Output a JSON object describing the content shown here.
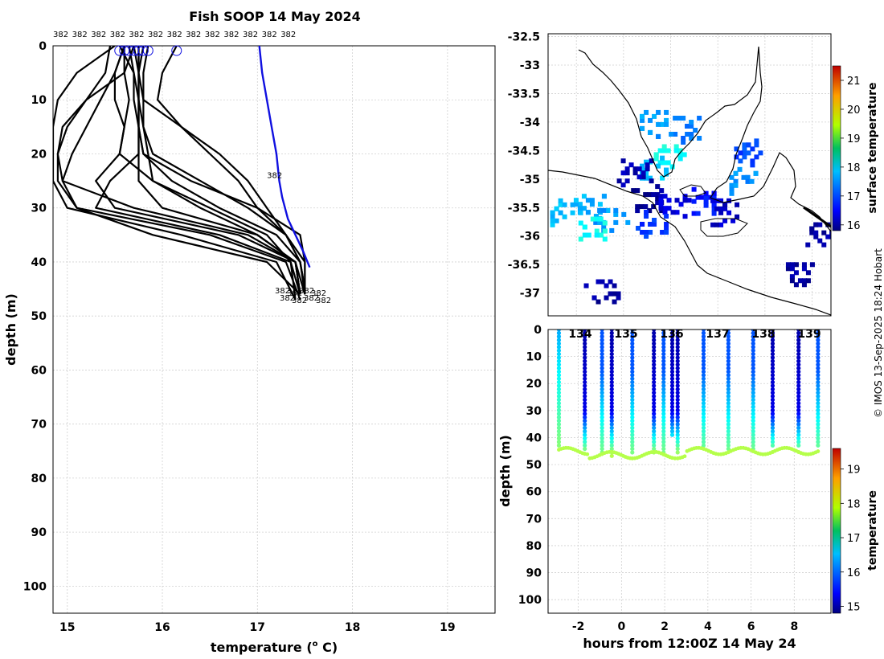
{
  "title": "Fish SOOP 14 May 2024",
  "credit": "© IMOS 13-Sep-2025 18:24 Hobart",
  "chart_data": [
    {
      "type": "line",
      "name": "temperature-depth profiles",
      "xlabel": "temperature (",
      "xlabel_sup": "o",
      "xlabel_tail": " C)",
      "ylabel": "depth (m)",
      "xlim": [
        14.85,
        19.5
      ],
      "ylim": [
        105,
        0
      ],
      "xticks": [
        15,
        16,
        17,
        18,
        19
      ],
      "yticks": [
        0,
        10,
        20,
        30,
        40,
        50,
        60,
        70,
        80,
        90,
        100
      ],
      "grid": true,
      "top_label": "382",
      "top_label_count": 13,
      "mid_label": "382",
      "mid_label_depth": 24.5,
      "mid_label_temp": 17.1,
      "bottom_labels": [
        "382",
        "382",
        "382",
        "382",
        "382",
        "382",
        "382",
        "382"
      ],
      "series": [
        {
          "name": "cast-1",
          "temps": [
            15.55,
            15.7,
            15.75,
            15.75,
            15.8,
            16.3,
            17.0,
            17.45,
            17.5,
            17.5
          ],
          "depths": [
            0,
            5,
            10,
            15,
            20,
            25,
            30,
            35,
            40,
            46
          ]
        },
        {
          "name": "cast-2",
          "temps": [
            15.6,
            15.6,
            15.65,
            15.6,
            15.55,
            15.3,
            15.5,
            16.8,
            17.4,
            17.5
          ],
          "depths": [
            0,
            5,
            10,
            15,
            20,
            25,
            30,
            35,
            40,
            46
          ]
        },
        {
          "name": "cast-3",
          "temps": [
            15.45,
            15.4,
            15.2,
            15.0,
            14.9,
            14.9,
            15.1,
            16.5,
            17.3,
            17.45
          ],
          "depths": [
            0,
            5,
            10,
            15,
            20,
            25,
            30,
            35,
            40,
            47
          ]
        },
        {
          "name": "cast-4",
          "temps": [
            15.5,
            15.1,
            14.9,
            14.85,
            14.85,
            14.85,
            15.0,
            16.2,
            17.2,
            17.4
          ],
          "depths": [
            0,
            5,
            10,
            15,
            20,
            25,
            30,
            35,
            40,
            47
          ]
        },
        {
          "name": "cast-5",
          "temps": [
            15.6,
            15.5,
            15.35,
            15.2,
            15.05,
            14.95,
            15.1,
            15.9,
            17.1,
            17.45
          ],
          "depths": [
            0,
            5,
            10,
            15,
            20,
            25,
            30,
            35,
            40,
            46
          ]
        },
        {
          "name": "cast-6",
          "temps": [
            15.65,
            15.7,
            15.7,
            15.75,
            15.8,
            16.1,
            16.6,
            17.2,
            17.45,
            17.5
          ],
          "depths": [
            0,
            5,
            10,
            15,
            20,
            25,
            30,
            35,
            40,
            46
          ]
        },
        {
          "name": "cast-7",
          "temps": [
            15.75,
            15.75,
            15.75,
            15.8,
            15.9,
            16.4,
            16.9,
            17.3,
            17.5,
            17.5
          ],
          "depths": [
            0,
            5,
            10,
            15,
            20,
            25,
            30,
            35,
            40,
            45
          ]
        },
        {
          "name": "cast-8",
          "temps": [
            15.7,
            15.75,
            15.75,
            15.75,
            15.75,
            15.75,
            16.0,
            17.0,
            17.4,
            17.45
          ],
          "depths": [
            0,
            5,
            10,
            15,
            20,
            25,
            30,
            35,
            40,
            46
          ]
        },
        {
          "name": "cast-9",
          "temps": [
            15.8,
            15.75,
            15.75,
            15.75,
            15.75,
            15.45,
            15.3,
            16.6,
            17.35,
            17.4
          ],
          "depths": [
            0,
            5,
            10,
            15,
            20,
            25,
            30,
            35,
            40,
            47
          ]
        },
        {
          "name": "cast-10",
          "temps": [
            15.85,
            15.8,
            15.8,
            16.2,
            16.6,
            16.9,
            17.1,
            17.3,
            17.45,
            17.5
          ],
          "depths": [
            0,
            5,
            10,
            15,
            20,
            25,
            30,
            35,
            40,
            45
          ]
        },
        {
          "name": "cast-11",
          "temps": [
            16.15,
            16.0,
            15.95,
            16.2,
            16.5,
            16.8,
            17.0,
            17.3,
            17.45,
            17.5
          ],
          "depths": [
            0,
            5,
            10,
            15,
            20,
            25,
            30,
            35,
            40,
            45
          ]
        },
        {
          "name": "cast-12",
          "temps": [
            15.75,
            15.75,
            15.8,
            15.8,
            15.85,
            15.9,
            16.5,
            17.1,
            17.35,
            17.45
          ],
          "depths": [
            0,
            5,
            10,
            15,
            20,
            25,
            30,
            35,
            40,
            46
          ]
        },
        {
          "name": "cast-13",
          "temps": [
            15.7,
            15.6,
            15.2,
            14.95,
            14.9,
            14.95,
            15.7,
            16.9,
            17.4,
            17.45
          ],
          "depths": [
            0,
            5,
            10,
            15,
            20,
            25,
            30,
            35,
            40,
            46
          ]
        },
        {
          "name": "cast-14",
          "temps": [
            15.6,
            15.5,
            15.5,
            15.6,
            15.55,
            15.9,
            16.4,
            17.0,
            17.4,
            17.45
          ],
          "depths": [
            0,
            5,
            10,
            15,
            20,
            25,
            30,
            35,
            40,
            46
          ]
        },
        {
          "name": "surface-profile",
          "color": "#1010e0",
          "temps": [
            17.02,
            17.05,
            17.1,
            17.15,
            17.2,
            17.23,
            17.26,
            17.32,
            17.4,
            17.48,
            17.55
          ],
          "depths": [
            0,
            5,
            10,
            15,
            20,
            25,
            28,
            32,
            35,
            38,
            41
          ]
        }
      ],
      "surface_markers": [
        15.55,
        15.6,
        15.65,
        15.7,
        15.75,
        15.75,
        15.8,
        15.85,
        16.15
      ]
    },
    {
      "type": "heatmap",
      "name": "surface temperature map",
      "xlim": [
        133.4,
        139.4
      ],
      "ylim": [
        -37.4,
        -32.45
      ],
      "yticks": [
        -32.5,
        -33,
        -33.5,
        -34,
        -34.5,
        -35,
        -35.5,
        -36,
        -36.5,
        -37
      ],
      "ytick_labels": [
        "-32.5",
        "-33",
        "-33.5",
        "-34",
        "-34.5",
        "-35",
        "-35.5",
        "-36",
        "-36.5",
        "-37"
      ],
      "colorbar_label": "surface temperature",
      "colorbar_range": [
        15.8,
        21.5
      ],
      "colorbar_ticks": [
        16,
        17,
        18,
        19,
        20,
        21
      ],
      "patches": [
        {
          "lon": 135.6,
          "lat": -34.0,
          "sst": 17.4
        },
        {
          "lon": 136.3,
          "lat": -34.1,
          "sst": 17.2
        },
        {
          "lon": 135.9,
          "lat": -34.6,
          "sst": 18.0
        },
        {
          "lon": 135.6,
          "lat": -34.8,
          "sst": 17.6
        },
        {
          "lon": 135.2,
          "lat": -34.85,
          "sst": 16.1
        },
        {
          "lon": 135.5,
          "lat": -35.3,
          "sst": 15.9
        },
        {
          "lon": 136.0,
          "lat": -35.4,
          "sst": 16.3
        },
        {
          "lon": 136.7,
          "lat": -35.35,
          "sst": 16.6
        },
        {
          "lon": 137.6,
          "lat": -34.5,
          "sst": 16.9
        },
        {
          "lon": 137.5,
          "lat": -35.0,
          "sst": 17.3
        },
        {
          "lon": 137.1,
          "lat": -35.55,
          "sst": 16.2
        },
        {
          "lon": 134.2,
          "lat": -35.4,
          "sst": 17.5
        },
        {
          "lon": 133.7,
          "lat": -35.55,
          "sst": 17.6
        },
        {
          "lon": 134.7,
          "lat": -35.65,
          "sst": 17.4
        },
        {
          "lon": 134.3,
          "lat": -35.8,
          "sst": 18.0
        },
        {
          "lon": 135.6,
          "lat": -35.75,
          "sst": 16.8
        },
        {
          "lon": 138.7,
          "lat": -36.6,
          "sst": 16.0
        },
        {
          "lon": 139.2,
          "lat": -35.9,
          "sst": 16.0
        },
        {
          "lon": 134.5,
          "lat": -36.9,
          "sst": 16.0
        }
      ]
    },
    {
      "type": "scatter",
      "name": "depth-time section",
      "xlabel": "hours from 12:00Z 14 May 24",
      "ylabel": "depth (m)",
      "xlim": [
        -3.4,
        9.7
      ],
      "ylim": [
        105,
        0
      ],
      "xticks": [
        -2,
        0,
        2,
        4,
        6,
        8
      ],
      "yticks": [
        0,
        10,
        20,
        30,
        40,
        50,
        60,
        70,
        80,
        90,
        100
      ],
      "top_axis_labels": [
        "134",
        "135",
        "136",
        "137",
        "138",
        "139"
      ],
      "colorbar_label": "temperature",
      "colorbar_range": [
        14.8,
        19.6
      ],
      "colorbar_ticks": [
        15,
        16,
        17,
        18,
        19
      ],
      "casts": [
        {
          "hour": -2.9,
          "bottom": 44,
          "type": "warm"
        },
        {
          "hour": -1.7,
          "bottom": 45,
          "type": "cold"
        },
        {
          "hour": -0.9,
          "bottom": 46,
          "type": "mid"
        },
        {
          "hour": -0.45,
          "bottom": 47,
          "type": "cold"
        },
        {
          "hour": 0.5,
          "bottom": 46,
          "type": "mid"
        },
        {
          "hour": 1.5,
          "bottom": 46,
          "type": "cold"
        },
        {
          "hour": 1.95,
          "bottom": 46,
          "type": "mid"
        },
        {
          "hour": 2.35,
          "bottom": 39,
          "type": "cold"
        },
        {
          "hour": 2.6,
          "bottom": 46,
          "type": "cold"
        },
        {
          "hour": 3.8,
          "bottom": 44,
          "type": "mid"
        },
        {
          "hour": 4.95,
          "bottom": 45,
          "type": "mid"
        },
        {
          "hour": 6.1,
          "bottom": 45,
          "type": "mid"
        },
        {
          "hour": 7.0,
          "bottom": 44,
          "type": "cold"
        },
        {
          "hour": 8.2,
          "bottom": 44,
          "type": "cold"
        },
        {
          "hour": 9.1,
          "bottom": 44,
          "type": "mid"
        }
      ]
    }
  ]
}
